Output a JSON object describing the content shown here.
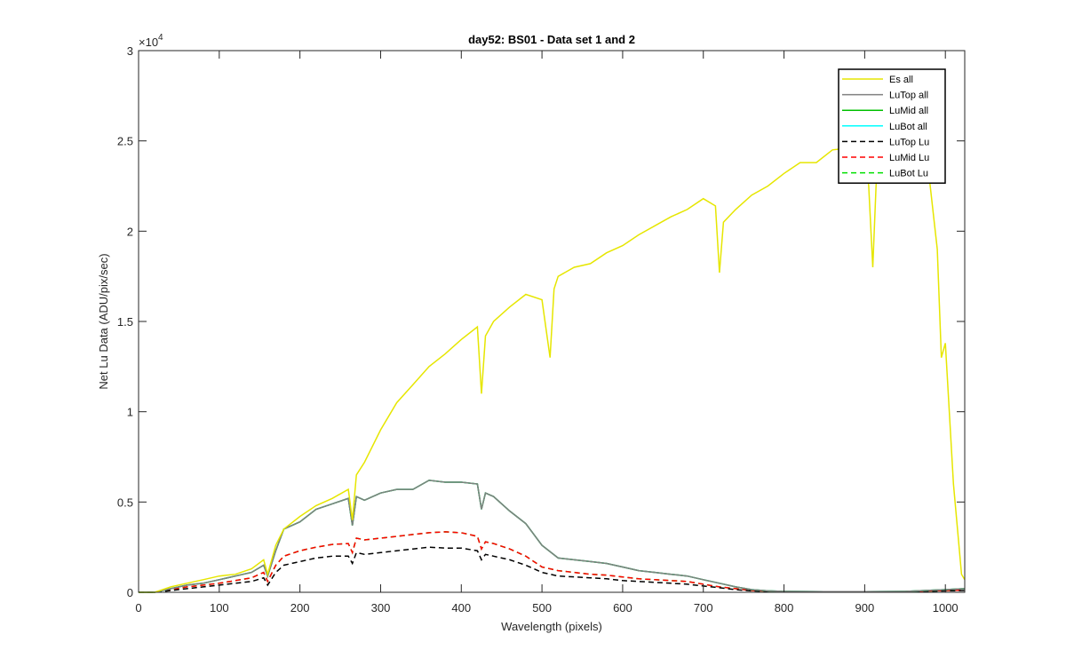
{
  "chart_data": {
    "type": "line",
    "title": "day52: BS01 - Data set 1 and 2",
    "xlabel": "Wavelength (pixels)",
    "ylabel": "Net Lu Data (ADU/pix/sec)",
    "xlim": [
      0,
      1024
    ],
    "ylim": [
      0,
      30000
    ],
    "y_exponent_label": "×10",
    "y_exponent_power": "4",
    "x_ticks": [
      "0",
      "100",
      "200",
      "300",
      "400",
      "500",
      "600",
      "700",
      "800",
      "900",
      "1000"
    ],
    "y_ticks": [
      "0",
      "0.5",
      "1",
      "1.5",
      "2",
      "2.5",
      "3"
    ],
    "grid": false,
    "legend_position": "top-right",
    "series": [
      {
        "name": "Es  all",
        "color": "#e6e600",
        "dash": "solid",
        "x": [
          0,
          20,
          40,
          60,
          80,
          100,
          120,
          140,
          155,
          160,
          170,
          180,
          200,
          220,
          240,
          260,
          265,
          270,
          280,
          300,
          320,
          340,
          360,
          380,
          400,
          420,
          425,
          430,
          440,
          460,
          480,
          500,
          510,
          515,
          520,
          540,
          560,
          580,
          600,
          620,
          640,
          660,
          680,
          700,
          715,
          720,
          725,
          740,
          760,
          780,
          800,
          820,
          840,
          860,
          880,
          900,
          905,
          910,
          915,
          930,
          950,
          970,
          980,
          990,
          995,
          1000,
          1010,
          1020,
          1024
        ],
        "y": [
          0,
          0,
          300,
          500,
          700,
          900,
          1000,
          1300,
          1800,
          1000,
          2600,
          3500,
          4200,
          4800,
          5200,
          5700,
          4000,
          6500,
          7200,
          9000,
          10500,
          11500,
          12500,
          13200,
          14000,
          14700,
          11000,
          14200,
          15000,
          15800,
          16500,
          16200,
          13000,
          16800,
          17500,
          18000,
          18200,
          18800,
          19200,
          19800,
          20300,
          20800,
          21200,
          21800,
          21400,
          17700,
          20500,
          21200,
          22000,
          22500,
          23200,
          23800,
          23800,
          24500,
          24600,
          24600,
          22500,
          18000,
          23500,
          24500,
          25000,
          24200,
          23000,
          19000,
          13000,
          13800,
          6000,
          1000,
          700
        ]
      },
      {
        "name": "LuTop  all",
        "color": "#808080",
        "dash": "solid",
        "x": [
          0,
          20,
          40,
          60,
          80,
          100,
          120,
          140,
          155,
          160,
          170,
          180,
          200,
          220,
          240,
          260,
          265,
          270,
          280,
          300,
          320,
          340,
          360,
          380,
          400,
          420,
          425,
          430,
          440,
          460,
          480,
          500,
          520,
          540,
          560,
          580,
          600,
          620,
          640,
          660,
          680,
          700,
          720,
          740,
          760,
          780,
          800,
          850,
          900,
          950,
          1000,
          1024
        ],
        "y": [
          0,
          0,
          200,
          400,
          500,
          700,
          900,
          1100,
          1500,
          900,
          2300,
          3500,
          3900,
          4600,
          4900,
          5200,
          3700,
          5300,
          5100,
          5500,
          5700,
          5700,
          6200,
          6100,
          6100,
          6000,
          4600,
          5500,
          5300,
          4500,
          3800,
          2600,
          1900,
          1800,
          1700,
          1600,
          1400,
          1200,
          1100,
          1000,
          900,
          700,
          500,
          300,
          150,
          80,
          50,
          40,
          40,
          50,
          150,
          200
        ]
      },
      {
        "name": "LuMid  all",
        "color": "#00c000",
        "dash": "solid",
        "x": [
          0,
          20,
          40,
          60,
          80,
          100,
          120,
          140,
          155,
          160,
          170,
          180,
          200,
          220,
          240,
          260,
          265,
          270,
          280,
          300,
          320,
          340,
          360,
          380,
          400,
          420,
          425,
          430,
          440,
          460,
          480,
          500,
          520,
          540,
          560,
          580,
          600,
          620,
          640,
          660,
          680,
          700,
          720,
          740,
          760,
          780,
          800,
          850,
          900,
          950,
          1000,
          1024
        ],
        "y": [
          0,
          0,
          200,
          400,
          500,
          700,
          900,
          1100,
          1500,
          900,
          2300,
          3500,
          3900,
          4600,
          4900,
          5200,
          3700,
          5300,
          5100,
          5500,
          5700,
          5700,
          6200,
          6100,
          6100,
          6000,
          4600,
          5500,
          5300,
          4500,
          3800,
          2600,
          1900,
          1800,
          1700,
          1600,
          1400,
          1200,
          1100,
          1000,
          900,
          700,
          500,
          300,
          150,
          80,
          50,
          40,
          40,
          50,
          150,
          200
        ]
      },
      {
        "name": "LuBot  all",
        "color": "#00ffff",
        "dash": "solid",
        "x": [
          0,
          20,
          40,
          60,
          80,
          100,
          120,
          140,
          155,
          160,
          170,
          180,
          200,
          220,
          240,
          260,
          265,
          270,
          280,
          300,
          320,
          340,
          360,
          380,
          400,
          420,
          425,
          430,
          440,
          460,
          480,
          500,
          520,
          540,
          560,
          580,
          600,
          620,
          640,
          660,
          680,
          700,
          720,
          740,
          760,
          780,
          800,
          850,
          900,
          950,
          1000,
          1024
        ],
        "y": [
          0,
          0,
          200,
          400,
          500,
          700,
          900,
          1100,
          1500,
          900,
          2300,
          3500,
          3900,
          4600,
          4900,
          5200,
          3700,
          5300,
          5100,
          5500,
          5700,
          5700,
          6200,
          6100,
          6100,
          6000,
          4600,
          5500,
          5300,
          4500,
          3800,
          2600,
          1900,
          1800,
          1700,
          1600,
          1400,
          1200,
          1100,
          1000,
          900,
          700,
          500,
          300,
          150,
          80,
          50,
          40,
          40,
          50,
          150,
          200
        ]
      },
      {
        "name": "LuTop  Lu",
        "color": "#000000",
        "dash": "dashed",
        "x": [
          0,
          20,
          40,
          60,
          80,
          100,
          120,
          140,
          155,
          160,
          170,
          180,
          200,
          220,
          240,
          260,
          265,
          270,
          280,
          300,
          320,
          340,
          360,
          380,
          400,
          420,
          425,
          430,
          440,
          460,
          480,
          500,
          520,
          540,
          560,
          580,
          600,
          620,
          640,
          660,
          680,
          700,
          720,
          740,
          760,
          780,
          800,
          850,
          900,
          950,
          1000,
          1024
        ],
        "y": [
          0,
          0,
          100,
          200,
          300,
          400,
          500,
          600,
          800,
          400,
          1100,
          1500,
          1700,
          1900,
          2000,
          2000,
          1600,
          2200,
          2100,
          2200,
          2300,
          2400,
          2500,
          2450,
          2450,
          2300,
          1800,
          2100,
          2000,
          1800,
          1500,
          1100,
          900,
          850,
          800,
          750,
          650,
          600,
          550,
          500,
          450,
          350,
          250,
          150,
          80,
          50,
          30,
          30,
          30,
          30,
          80,
          100
        ]
      },
      {
        "name": "LuMid  Lu",
        "color": "#ff0000",
        "dash": "dashed",
        "x": [
          0,
          20,
          40,
          60,
          80,
          100,
          120,
          140,
          155,
          160,
          170,
          180,
          200,
          220,
          240,
          260,
          265,
          270,
          280,
          300,
          320,
          340,
          360,
          380,
          400,
          420,
          425,
          430,
          440,
          460,
          480,
          500,
          520,
          540,
          560,
          580,
          600,
          620,
          640,
          660,
          680,
          700,
          720,
          740,
          760,
          780,
          800,
          850,
          900,
          950,
          1000,
          1024
        ],
        "y": [
          0,
          0,
          150,
          300,
          400,
          500,
          650,
          800,
          1100,
          600,
          1500,
          2000,
          2300,
          2500,
          2650,
          2700,
          2200,
          3000,
          2900,
          3000,
          3100,
          3200,
          3300,
          3350,
          3300,
          3100,
          2400,
          2800,
          2700,
          2400,
          2000,
          1400,
          1200,
          1100,
          1000,
          950,
          850,
          750,
          700,
          650,
          600,
          450,
          300,
          200,
          100,
          60,
          40,
          40,
          40,
          40,
          100,
          120
        ]
      },
      {
        "name": "LuBot  Lu",
        "color": "#00e000",
        "dash": "dashed",
        "x": [
          0,
          20,
          40,
          60,
          80,
          100,
          120,
          140,
          155,
          160,
          170,
          180,
          200,
          220,
          240,
          260,
          265,
          270,
          280,
          300,
          320,
          340,
          360,
          380,
          400,
          420,
          425,
          430,
          440,
          460,
          480,
          500,
          520,
          540,
          560,
          580,
          600,
          620,
          640,
          660,
          680,
          700,
          720,
          740,
          760,
          780,
          800,
          850,
          900,
          950,
          1000,
          1024
        ],
        "y": [
          0,
          0,
          150,
          300,
          400,
          500,
          650,
          800,
          1100,
          600,
          1500,
          2000,
          2300,
          2500,
          2650,
          2700,
          2200,
          3000,
          2900,
          3000,
          3100,
          3200,
          3300,
          3350,
          3300,
          3100,
          2400,
          2800,
          2700,
          2400,
          2000,
          1400,
          1200,
          1100,
          1000,
          950,
          850,
          750,
          700,
          650,
          600,
          450,
          300,
          200,
          100,
          60,
          40,
          40,
          40,
          40,
          100,
          120
        ]
      }
    ]
  }
}
